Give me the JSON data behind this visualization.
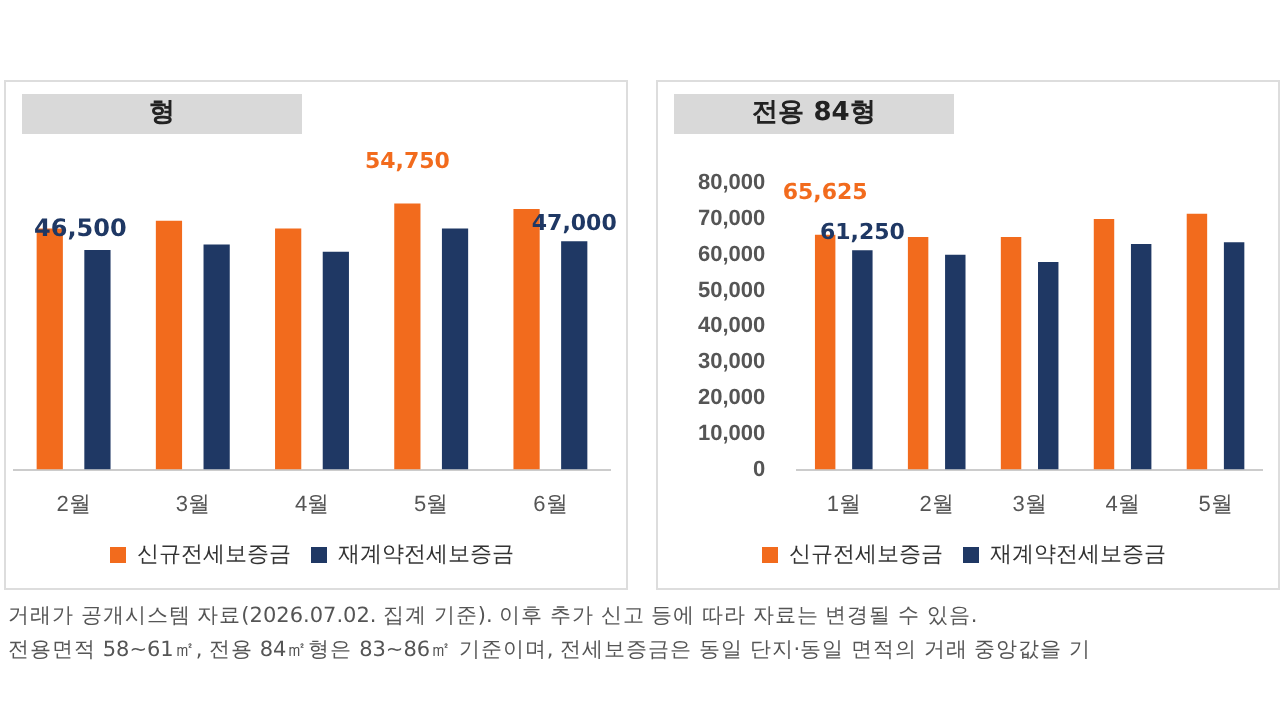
{
  "chart_data": [
    {
      "type": "bar",
      "title": "형",
      "categories": [
        "2월",
        "3월",
        "4월",
        "5월",
        "6월"
      ],
      "tick_labels": "x",
      "legend": "bottom",
      "annotations": [
        "46,500"
      ],
      "series": [
        {
          "name": "신규전세보증금",
          "color": "#f26b1d",
          "values": [
            49600,
            51200,
            49600,
            54750,
            53600
          ],
          "value_labels": [
            null,
            null,
            null,
            "54,750",
            null
          ]
        },
        {
          "name": "재계약전세보증금",
          "color": "#1f3864",
          "values": [
            45200,
            46300,
            44800,
            49600,
            47000
          ],
          "value_labels": [
            null,
            null,
            null,
            null,
            "47,000"
          ]
        }
      ]
    },
    {
      "type": "bar",
      "title": "전용 84형",
      "categories": [
        "1월",
        "2월",
        "3월",
        "4월",
        "5월"
      ],
      "ylim": [
        0,
        80000
      ],
      "yticks": [
        {
          "value": 0,
          "label": "0"
        },
        {
          "value": 10000,
          "label": "10,000"
        },
        {
          "value": 20000,
          "label": "20,000"
        },
        {
          "value": 30000,
          "label": "30,000"
        },
        {
          "value": 40000,
          "label": "40,000"
        },
        {
          "value": 50000,
          "label": "50,000"
        },
        {
          "value": 60000,
          "label": "60,000"
        },
        {
          "value": 70000,
          "label": "70,000"
        },
        {
          "value": 80000,
          "label": "80,000"
        }
      ],
      "legend": "bottom",
      "annotations": [
        "거래가 공개시스템 자료(2026.07.02. 집계 기준). 이후 추가 신고 등에 따라 자료는 변경될 수 있음.",
        "전용면적 58~61㎡, 전용 84㎡형은 83~86㎡ 기준이며, 전세보증금은 동일 단지·동일 면적의 거래 중앙값을 기"
      ],
      "series": [
        {
          "name": "신규전세보증금",
          "color": "#f26b1d",
          "values": [
            65625,
            65000,
            65000,
            70000,
            71500
          ],
          "value_labels": [
            "65,625",
            null,
            null,
            null,
            null
          ]
        },
        {
          "name": "재계약전세보증금",
          "color": "#1f3864",
          "values": [
            61250,
            60000,
            58000,
            63000,
            63500
          ],
          "value_labels": [
            "61,250",
            null,
            null,
            null,
            null
          ]
        }
      ]
    }
  ]
}
